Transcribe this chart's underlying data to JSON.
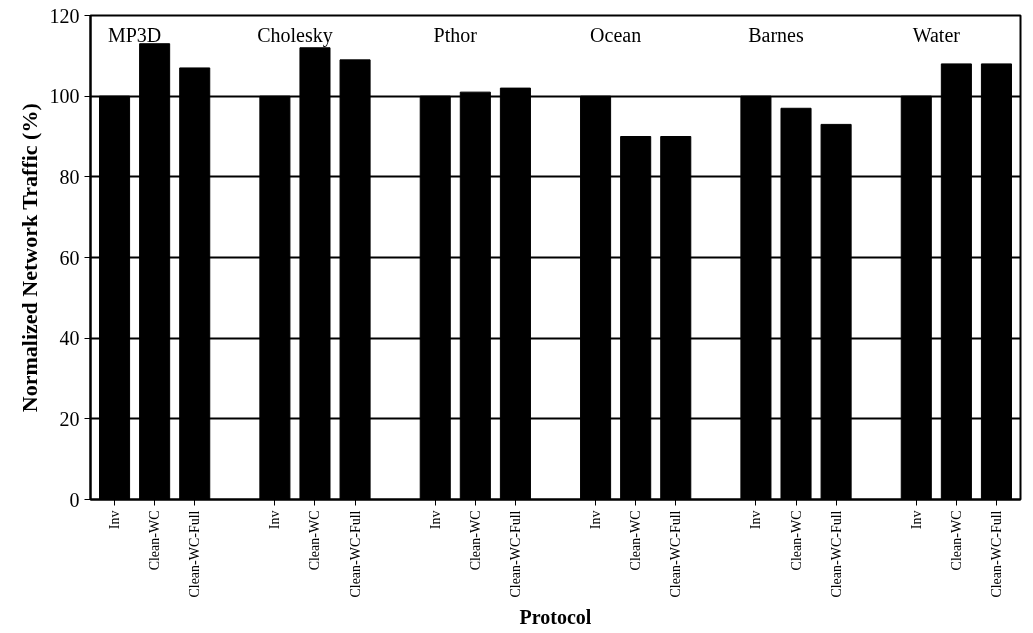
{
  "chart_data": {
    "type": "bar",
    "xlabel": "Protocol",
    "ylabel": "Normalized Network Traffic (%)",
    "categories": [
      "Inv",
      "Clean-WC",
      "Clean-WC-Full",
      "Inv",
      "Clean-WC",
      "Clean-WC-Full",
      "Inv",
      "Clean-WC",
      "Clean-WC-Full",
      "Inv",
      "Clean-WC",
      "Clean-WC-Full",
      "Inv",
      "Clean-WC",
      "Clean-WC-Full",
      "Inv",
      "Clean-WC",
      "Clean-WC-Full"
    ],
    "values": [
      100,
      113,
      107,
      100,
      112,
      109,
      100,
      101,
      102,
      100,
      90,
      90,
      100,
      97,
      93,
      100,
      108,
      108
    ],
    "color": "#000000",
    "annotations": [
      "MP3D",
      "Cholesky",
      "Pthor",
      "Ocean",
      "Barnes",
      "Water"
    ],
    "ylim": [
      0,
      120
    ],
    "yticks": [
      0,
      20,
      40,
      60,
      80,
      100,
      120
    ],
    "grid": "y"
  }
}
